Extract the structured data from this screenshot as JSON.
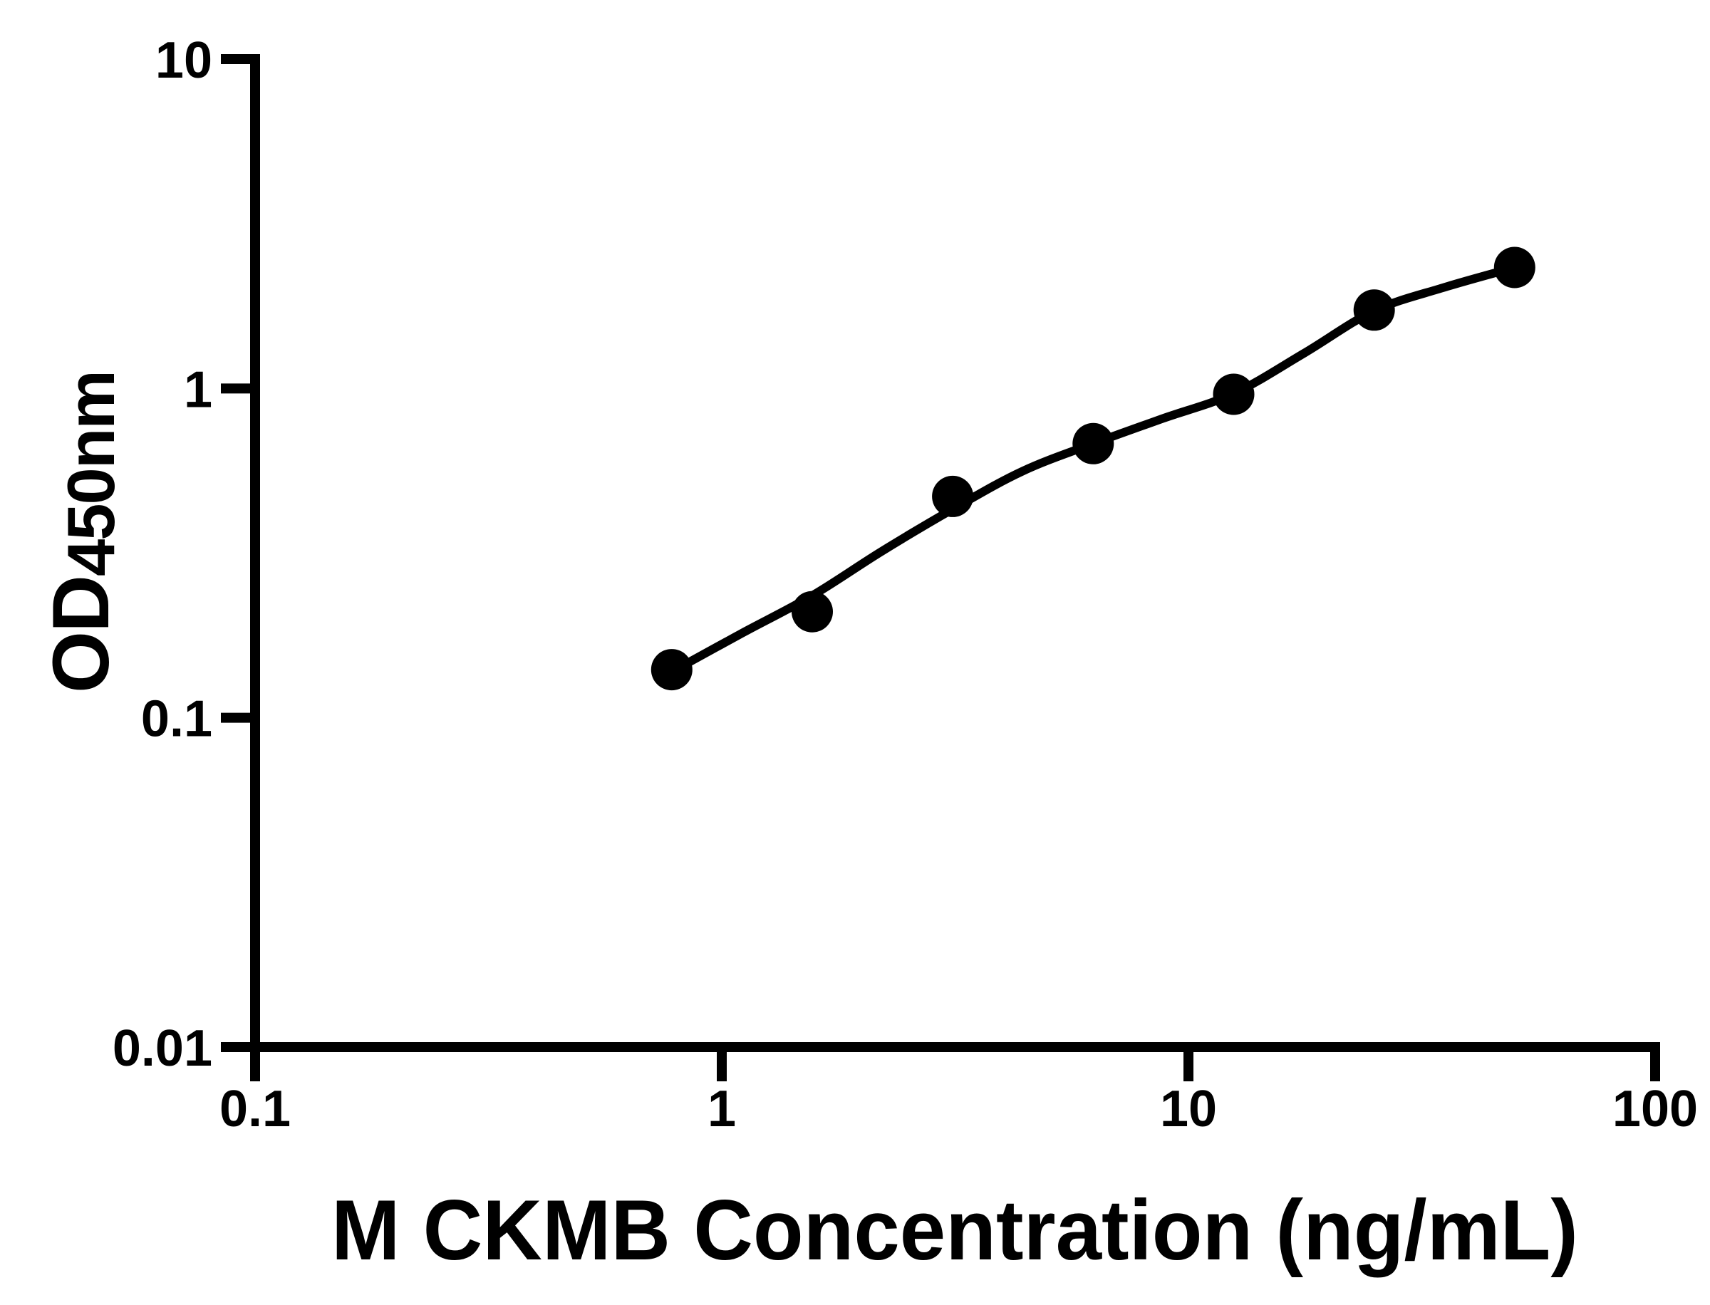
{
  "page": {
    "background": "#ffffff",
    "foreground": "#000000"
  },
  "chart_data": {
    "type": "scatter",
    "subtype": "standard-curve-with-fit",
    "title": "",
    "xlabel": "M CKMB Concentration (ng/mL)",
    "ylabel_main": "OD",
    "ylabel_sub": "450nm",
    "x_scale": "log",
    "y_scale": "log",
    "xlim": [
      0.1,
      100
    ],
    "ylim": [
      0.01,
      10
    ],
    "grid": false,
    "legend": null,
    "x_ticks": [
      {
        "value": 0.1,
        "label": "0.1"
      },
      {
        "value": 1,
        "label": "1"
      },
      {
        "value": 10,
        "label": "10"
      },
      {
        "value": 100,
        "label": "100"
      }
    ],
    "y_ticks": [
      {
        "value": 10,
        "label": "10"
      },
      {
        "value": 1,
        "label": "1"
      },
      {
        "value": 0.1,
        "label": "0.1"
      },
      {
        "value": 0.01,
        "label": "0.01"
      }
    ],
    "points": [
      {
        "x": 0.78125,
        "y": 0.14
      },
      {
        "x": 1.5625,
        "y": 0.21
      },
      {
        "x": 3.125,
        "y": 0.47
      },
      {
        "x": 6.25,
        "y": 0.68
      },
      {
        "x": 12.5,
        "y": 0.96
      },
      {
        "x": 25,
        "y": 1.73
      },
      {
        "x": 50,
        "y": 2.33
      }
    ],
    "fit_line": [
      {
        "x": 0.78125,
        "y": 0.138
      },
      {
        "x": 1.1,
        "y": 0.18
      },
      {
        "x": 1.5625,
        "y": 0.235
      },
      {
        "x": 2.2,
        "y": 0.32
      },
      {
        "x": 3.125,
        "y": 0.43
      },
      {
        "x": 4.4,
        "y": 0.56
      },
      {
        "x": 6.25,
        "y": 0.68
      },
      {
        "x": 8.8,
        "y": 0.81
      },
      {
        "x": 12.5,
        "y": 0.965
      },
      {
        "x": 17.7,
        "y": 1.28
      },
      {
        "x": 25,
        "y": 1.72
      },
      {
        "x": 35,
        "y": 2.02
      },
      {
        "x": 50,
        "y": 2.33
      }
    ],
    "marker": {
      "shape": "circle",
      "radius_px": 29,
      "color": "#000000"
    },
    "line_color": "#000000",
    "axis_color": "#000000",
    "text_color": "#000000",
    "background": "#ffffff"
  }
}
